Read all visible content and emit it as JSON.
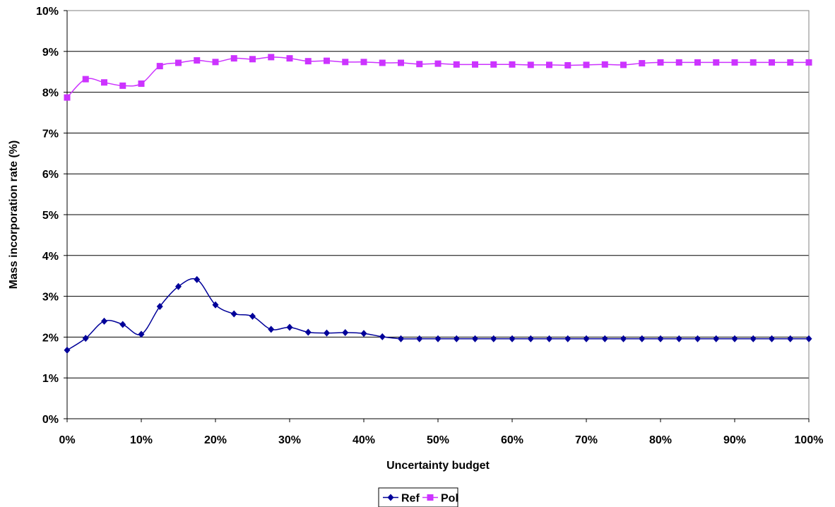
{
  "chart_data": {
    "type": "line",
    "title": "",
    "xlabel": "Uncertainty budget",
    "ylabel": "Mass incorporation rate (%)",
    "xlim": [
      0,
      100
    ],
    "ylim": [
      0,
      10
    ],
    "x_ticks": [
      "0%",
      "10%",
      "20%",
      "30%",
      "40%",
      "50%",
      "60%",
      "70%",
      "80%",
      "90%",
      "100%"
    ],
    "y_ticks": [
      "0%",
      "1%",
      "2%",
      "3%",
      "4%",
      "5%",
      "6%",
      "7%",
      "8%",
      "9%",
      "10%"
    ],
    "grid": "horizontal",
    "legend_position": "bottom",
    "x": [
      0,
      2.5,
      5,
      7.5,
      10,
      12.5,
      15,
      17.5,
      20,
      22.5,
      25,
      27.5,
      30,
      32.5,
      35,
      37.5,
      40,
      42.5,
      45,
      47.5,
      50,
      52.5,
      55,
      57.5,
      60,
      62.5,
      65,
      67.5,
      70,
      72.5,
      75,
      77.5,
      80,
      82.5,
      85,
      87.5,
      90,
      92.5,
      95,
      97.5,
      100
    ],
    "series": [
      {
        "name": "Ref",
        "color": "#000099",
        "marker": "diamond",
        "values": [
          1.68,
          1.97,
          2.39,
          2.31,
          2.07,
          2.75,
          3.24,
          3.41,
          2.79,
          2.57,
          2.51,
          2.19,
          2.24,
          2.12,
          2.1,
          2.11,
          2.09,
          2.01,
          1.96,
          1.96,
          1.96,
          1.96,
          1.96,
          1.96,
          1.96,
          1.96,
          1.96,
          1.96,
          1.96,
          1.96,
          1.96,
          1.96,
          1.96,
          1.96,
          1.96,
          1.96,
          1.96,
          1.96,
          1.96,
          1.96,
          1.96
        ]
      },
      {
        "name": "Pol",
        "color": "#cc33ff",
        "marker": "square",
        "values": [
          7.87,
          8.32,
          8.24,
          8.16,
          8.21,
          8.64,
          8.72,
          8.78,
          8.74,
          8.83,
          8.81,
          8.86,
          8.83,
          8.76,
          8.77,
          8.74,
          8.74,
          8.72,
          8.72,
          8.69,
          8.7,
          8.68,
          8.68,
          8.68,
          8.68,
          8.67,
          8.67,
          8.66,
          8.67,
          8.68,
          8.67,
          8.71,
          8.73,
          8.73,
          8.73,
          8.73,
          8.73,
          8.73,
          8.73,
          8.73,
          8.73
        ]
      }
    ]
  }
}
